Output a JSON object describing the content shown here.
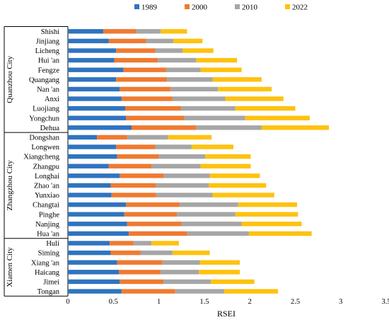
{
  "chart_data": {
    "type": "bar",
    "orientation": "horizontal",
    "stacked": true,
    "xlabel": "RSEI",
    "xlim": [
      0,
      3.5
    ],
    "xticks": [
      "0",
      "0.5",
      "1",
      "1.5",
      "2",
      "2.5",
      "3",
      "3.5"
    ],
    "legend_position": "top",
    "grid": false,
    "colors": {
      "1989": "#2f74c0",
      "2000": "#ef7a30",
      "2010": "#a6a6a6",
      "2022": "#fec20f"
    },
    "groups": [
      {
        "name": "Quanzhou City",
        "categories": [
          "Shishi",
          "Jinjiang",
          "Licheng",
          "Hui 'an",
          "Fengze",
          "Quangang",
          "Nan 'an",
          "Anxi",
          "Luojiang",
          "Yongchun",
          "Dehua"
        ],
        "series": [
          {
            "name": "1989",
            "values": [
              0.39,
              0.45,
              0.53,
              0.51,
              0.61,
              0.53,
              0.57,
              0.59,
              0.63,
              0.64,
              0.7
            ]
          },
          {
            "name": "2000",
            "values": [
              0.36,
              0.41,
              0.43,
              0.48,
              0.47,
              0.56,
              0.56,
              0.56,
              0.61,
              0.64,
              0.71
            ]
          },
          {
            "name": "2010",
            "values": [
              0.27,
              0.3,
              0.3,
              0.42,
              0.38,
              0.5,
              0.52,
              0.58,
              0.6,
              0.67,
              0.72
            ]
          },
          {
            "name": "2022",
            "values": [
              0.29,
              0.32,
              0.34,
              0.45,
              0.45,
              0.54,
              0.59,
              0.64,
              0.66,
              0.71,
              0.74
            ]
          }
        ]
      },
      {
        "name": "Zhangzhou City",
        "categories": [
          "Dongshan",
          "Longwen",
          "Xiangcheng",
          "Zhangpu",
          "Longhai",
          "Zhao 'an",
          "Yunxiao",
          "Changtai",
          "Pinghe",
          "Nanjing",
          "Hua 'an"
        ],
        "series": [
          {
            "name": "1989",
            "values": [
              0.32,
              0.53,
              0.54,
              0.45,
              0.57,
              0.47,
              0.48,
              0.64,
              0.62,
              0.65,
              0.67
            ]
          },
          {
            "name": "2000",
            "values": [
              0.33,
              0.43,
              0.46,
              0.47,
              0.48,
              0.5,
              0.49,
              0.59,
              0.58,
              0.6,
              0.64
            ]
          },
          {
            "name": "2010",
            "values": [
              0.45,
              0.4,
              0.51,
              0.54,
              0.51,
              0.58,
              0.62,
              0.64,
              0.64,
              0.66,
              0.68
            ]
          },
          {
            "name": "2022",
            "values": [
              0.48,
              0.46,
              0.5,
              0.55,
              0.55,
              0.63,
              0.68,
              0.65,
              0.69,
              0.66,
              0.69
            ]
          }
        ]
      },
      {
        "name": "Xiamen City",
        "categories": [
          "Huli",
          "Siming",
          "Xiang 'an",
          "Haicang",
          "Jimei",
          "Tongan"
        ],
        "series": [
          {
            "name": "1989",
            "values": [
              0.46,
              0.47,
              0.54,
              0.56,
              0.57,
              0.59
            ]
          },
          {
            "name": "2000",
            "values": [
              0.26,
              0.33,
              0.5,
              0.46,
              0.48,
              0.59
            ]
          },
          {
            "name": "2010",
            "values": [
              0.2,
              0.35,
              0.41,
              0.42,
              0.52,
              0.54
            ]
          },
          {
            "name": "2022",
            "values": [
              0.3,
              0.41,
              0.44,
              0.45,
              0.48,
              0.59
            ]
          }
        ]
      }
    ]
  }
}
